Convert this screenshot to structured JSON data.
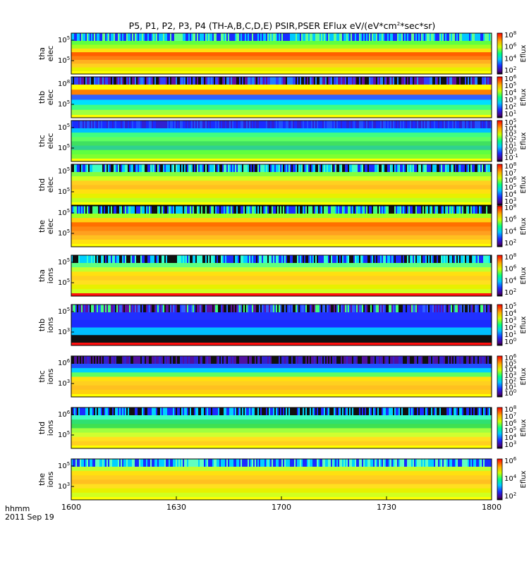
{
  "chart_data": {
    "type": "heatmap",
    "title": "P5, P1, P2, P3, P4 (TH-A,B,C,D,E) PSIR,PSER EFlux eV/(eV*cm",
    "title_sup": "2",
    "title_end": "*sec*sr)",
    "time_axis": {
      "ticks": [
        "1600",
        "1630",
        "1700",
        "1730",
        "1800"
      ],
      "range": [
        "16:00",
        "18:00"
      ],
      "label_line1": "hhmm",
      "label_line2": "2011 Sep 19"
    },
    "colorbar_label": "Eflux",
    "panels": [
      {
        "probe": "tha",
        "species": "elec",
        "yticks": [
          "10",
          "10"
        ],
        "yexp": [
          "5",
          "5"
        ],
        "cbar_ticks": [
          "10",
          "10",
          "10",
          "10"
        ],
        "cbar_exp": [
          "8",
          "6",
          "4",
          "2"
        ],
        "colors": {
          "top_noise": [
            "#1a2bff",
            "#00c8ff",
            "#60ff90"
          ],
          "bands": [
            "#60ff40",
            "#a0ff20",
            "#ffe010",
            "#ff6000",
            "#ff8010",
            "#ffb020",
            "#ffd020",
            "#e8f000"
          ],
          "bottom_line": "#ffff00"
        }
      },
      {
        "probe": "thb",
        "species": "elec",
        "yticks": [
          "10",
          "10"
        ],
        "yexp": [
          "8",
          "5"
        ],
        "cbar_ticks": [
          "10",
          "10",
          "10",
          "10",
          "10",
          "10"
        ],
        "cbar_exp": [
          "6",
          "5",
          "4",
          "3",
          "2",
          "1"
        ],
        "colors": {
          "top_noise": [
            "#101010",
            "#3040ff",
            "#2080ff",
            "#6010a0"
          ],
          "bands": [
            "#ffff00",
            "#ff8000",
            "#3060ff",
            "#00e0ff",
            "#40ff80",
            "#a0ff40"
          ],
          "bottom_line": "#ffff00"
        }
      },
      {
        "probe": "thc",
        "species": "elec",
        "yticks": [
          "10",
          "10"
        ],
        "yexp": [
          "5",
          "5"
        ],
        "cbar_ticks": [
          "10",
          "10",
          "10",
          "10",
          "10",
          "10",
          "10"
        ],
        "cbar_exp": [
          "5",
          "4",
          "3",
          "2",
          "1",
          "0",
          "-1"
        ],
        "colors": {
          "top_noise": [
            "#3020d0",
            "#1a2bff",
            "#2050ff"
          ],
          "bands": [
            "#00c0ff",
            "#40ff80",
            "#60ff60",
            "#40e060",
            "#30d090",
            "#60ff40",
            "#80ff30"
          ],
          "bottom_line": "#ffff00"
        }
      },
      {
        "probe": "thd",
        "species": "elec",
        "yticks": [
          "10",
          "10"
        ],
        "yexp": [
          "5",
          "5"
        ],
        "cbar_ticks": [
          "10",
          "10",
          "10",
          "10",
          "10",
          "10"
        ],
        "cbar_exp": [
          "8",
          "7",
          "6",
          "5",
          "4",
          "3"
        ],
        "colors": {
          "top_noise": [
            "#101010",
            "#1a2bff",
            "#00d0ff",
            "#40ffc0"
          ],
          "bands": [
            "#80ff40",
            "#d0ff20",
            "#ffd020",
            "#ffc020",
            "#ffe010",
            "#e8f000",
            "#c0ff20"
          ],
          "bottom_line": "#ffff00"
        }
      },
      {
        "probe": "the",
        "species": "elec",
        "yticks": [
          "10",
          "10"
        ],
        "yexp": [
          "5",
          "5"
        ],
        "cbar_ticks": [
          "10",
          "10",
          "10",
          "10"
        ],
        "cbar_exp": [
          "8",
          "6",
          "4",
          "2"
        ],
        "colors": {
          "top_noise": [
            "#101010",
            "#1a2bff",
            "#00c8ff",
            "#40ff80"
          ],
          "bands": [
            "#a0ff20",
            "#ffd010",
            "#ff7000",
            "#ff8810",
            "#ffa020",
            "#ffc020",
            "#ffe010"
          ],
          "bottom_line": "#ffff00"
        }
      },
      {
        "probe": "tha",
        "species": "ions",
        "yticks": [
          "10",
          "10"
        ],
        "yexp": [
          "5",
          "5"
        ],
        "cbar_ticks": [
          "10",
          "10",
          "10",
          "10"
        ],
        "cbar_exp": [
          "8",
          "6",
          "4",
          "2"
        ],
        "colors": {
          "top_noise": [
            "#101010",
            "#1a2bff",
            "#00d0ff",
            "#30ffd0"
          ],
          "bands": [
            "#60ff80",
            "#c0ff30",
            "#ffe010",
            "#ffd020",
            "#ffe020",
            "#e8f000",
            "#d0ff20"
          ],
          "bottom_line": "#ff1010"
        }
      },
      {
        "probe": "thb",
        "species": "ions",
        "yticks": [
          "10",
          "10"
        ],
        "yexp": [
          "5",
          "3"
        ],
        "cbar_ticks": [
          "10",
          "10",
          "10",
          "10",
          "10",
          "10"
        ],
        "cbar_exp": [
          "5",
          "4",
          "3",
          "2",
          "1",
          "0"
        ],
        "colors": {
          "top_noise": [
            "#101010",
            "#2030ff",
            "#40ff80",
            "#3060ff",
            "#6010a0"
          ],
          "bands": [
            "#2030ff",
            "#1a2bff",
            "#00c0ff",
            "#101010"
          ],
          "bottom_line": "#ff1010"
        }
      },
      {
        "probe": "thc",
        "species": "ions",
        "yticks": [
          "10",
          "10"
        ],
        "yexp": [
          "6",
          "3"
        ],
        "cbar_ticks": [
          "10",
          "10",
          "10",
          "10",
          "10",
          "10",
          "10"
        ],
        "cbar_exp": [
          "6",
          "5",
          "4",
          "3",
          "2",
          "1",
          "0"
        ],
        "colors": {
          "top_noise": [
            "#101010",
            "#5010a0",
            "#3020d0"
          ],
          "bands": [
            "#2050ff",
            "#00d0ff",
            "#60ff60",
            "#ffe010",
            "#ffd020",
            "#ffc020",
            "#ffd010"
          ],
          "bottom_line": "#ffff00"
        }
      },
      {
        "probe": "thd",
        "species": "ions",
        "yticks": [
          "10",
          "10"
        ],
        "yexp": [
          "6",
          "5"
        ],
        "cbar_ticks": [
          "10",
          "10",
          "10",
          "10",
          "10",
          "10"
        ],
        "cbar_exp": [
          "8",
          "7",
          "6",
          "5",
          "4",
          "3"
        ],
        "colors": {
          "top_noise": [
            "#101010",
            "#1a2bff",
            "#00d0ff"
          ],
          "bands": [
            "#40ffc0",
            "#30e070",
            "#40e050",
            "#a0ff40",
            "#d0ff30",
            "#ffe020",
            "#ffd020"
          ],
          "bottom_line": "#ffff00"
        }
      },
      {
        "probe": "the",
        "species": "ions",
        "yticks": [
          "10",
          "10"
        ],
        "yexp": [
          "5",
          "3"
        ],
        "cbar_ticks": [
          "10",
          "10",
          "10"
        ],
        "cbar_exp": [
          "6",
          "4",
          "2"
        ],
        "colors": {
          "top_noise": [
            "#1a2bff",
            "#00d0ff",
            "#60ffc0"
          ],
          "bands": [
            "#c0ff30",
            "#ffe010",
            "#ffd020",
            "#ffc020",
            "#ffe020",
            "#e8f000",
            "#d0ff20"
          ],
          "bottom_line": "#ffff00"
        }
      }
    ]
  }
}
